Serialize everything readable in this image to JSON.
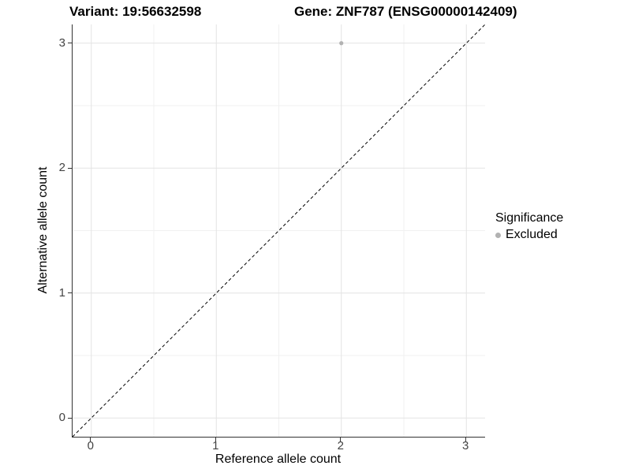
{
  "chart_data": {
    "type": "scatter",
    "title_left": "Variant: 19:56632598",
    "title_right": "Gene: ZNF787 (ENSG00000142409)",
    "xlabel": "Reference allele count",
    "ylabel": "Alternative allele count",
    "xlim": [
      -0.15,
      3.15
    ],
    "ylim": [
      -0.15,
      3.15
    ],
    "x_ticks": [
      0,
      1,
      2,
      3
    ],
    "y_ticks": [
      0,
      1,
      2,
      3
    ],
    "x_minor_ticks": [
      0.5,
      1.5,
      2.5
    ],
    "y_minor_ticks": [
      0.5,
      1.5,
      2.5
    ],
    "grid": "major+minor",
    "series": [
      {
        "name": "Excluded",
        "color": "#b2b2b2",
        "point_radius": 2.6,
        "points": [
          {
            "x": 2,
            "y": 3
          }
        ]
      }
    ],
    "reference_line": {
      "type": "identity",
      "style": "dashed",
      "color": "#000000"
    },
    "legend": {
      "title": "Significance",
      "position": "right",
      "items": [
        {
          "label": "Excluded",
          "color": "#b2b2b2"
        }
      ]
    },
    "colors": {
      "background": "#ffffff",
      "grid_major": "#e3e3e3",
      "grid_minor": "#f1f1f1",
      "axis_line": "#333333",
      "tick_label": "#444444",
      "title": "#000000"
    }
  }
}
